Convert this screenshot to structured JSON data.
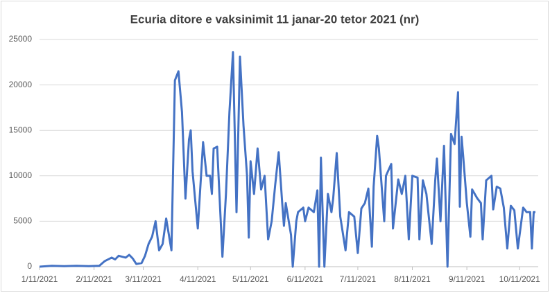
{
  "chart_data": {
    "type": "line",
    "title": "Ecuria ditore e vaksinimit 11 janar-20 tetor 2021 (nr)",
    "x": [
      "1/11/2021",
      "1/18/2021",
      "1/25/2021",
      "2/1/2021",
      "2/8/2021",
      "2/14/2021",
      "2/17/2021",
      "2/21/2021",
      "2/23/2021",
      "2/25/2021",
      "3/1/2021",
      "3/3/2021",
      "3/5/2021",
      "3/7/2021",
      "3/10/2021",
      "3/12/2021",
      "3/14/2021",
      "3/16/2021",
      "3/18/2021",
      "3/20/2021",
      "3/22/2021",
      "3/24/2021",
      "3/27/2021",
      "3/29/2021",
      "3/31/2021",
      "4/2/2021",
      "4/4/2021",
      "4/6/2021",
      "4/7/2021",
      "4/8/2021",
      "4/11/2021",
      "4/14/2021",
      "4/16/2021",
      "4/18/2021",
      "4/19/2021",
      "4/20/2021",
      "4/22/2021",
      "4/25/2021",
      "4/27/2021",
      "4/29/2021",
      "5/1/2021",
      "5/3/2021",
      "5/5/2021",
      "5/7/2021",
      "5/9/2021",
      "5/10/2021",
      "5/11/2021",
      "5/13/2021",
      "5/15/2021",
      "5/17/2021",
      "5/19/2021",
      "5/21/2021",
      "5/23/2021",
      "5/25/2021",
      "5/27/2021",
      "5/29/2021",
      "5/30/2021",
      "5/31/2021",
      "6/3/2021",
      "6/4/2021",
      "6/6/2021",
      "6/7/2021",
      "6/10/2021",
      "6/11/2021",
      "6/13/2021",
      "6/16/2021",
      "6/18/2021",
      "6/19/2021",
      "6/20/2021",
      "6/22/2021",
      "6/24/2021",
      "6/26/2021",
      "6/27/2021",
      "6/29/2021",
      "7/1/2021",
      "7/4/2021",
      "7/6/2021",
      "7/9/2021",
      "7/11/2021",
      "7/13/2021",
      "7/15/2021",
      "7/17/2021",
      "7/19/2021",
      "7/20/2021",
      "7/22/2021",
      "7/23/2021",
      "7/26/2021",
      "7/27/2021",
      "7/30/2021",
      "7/31/2021",
      "8/3/2021",
      "8/5/2021",
      "8/7/2021",
      "8/9/2021",
      "8/11/2021",
      "8/14/2021",
      "8/15/2021",
      "8/17/2021",
      "8/19/2021",
      "8/22/2021",
      "8/24/2021",
      "8/25/2021",
      "8/27/2021",
      "8/29/2021",
      "8/31/2021",
      "9/2/2021",
      "9/4/2021",
      "9/6/2021",
      "9/7/2021",
      "9/8/2021",
      "9/9/2021",
      "9/11/2021",
      "9/13/2021",
      "9/14/2021",
      "9/17/2021",
      "9/19/2021",
      "9/20/2021",
      "9/22/2021",
      "9/25/2021",
      "9/26/2021",
      "9/28/2021",
      "9/30/2021",
      "10/2/2021",
      "10/4/2021",
      "10/6/2021",
      "10/8/2021",
      "10/10/2021",
      "10/13/2021",
      "10/15/2021",
      "10/17/2021",
      "10/18/2021",
      "10/19/2021",
      "10/20/2021"
    ],
    "series": [
      {
        "color": "#4472c4",
        "values": [
          0,
          100,
          50,
          100,
          50,
          100,
          600,
          1000,
          800,
          1200,
          1000,
          1300,
          900,
          300,
          400,
          1200,
          2500,
          3300,
          5000,
          1800,
          2500,
          5300,
          1800,
          20500,
          21500,
          17000,
          7500,
          14000,
          15000,
          10500,
          4200,
          13700,
          10000,
          10000,
          8000,
          13000,
          13200,
          1100,
          8000,
          17000,
          23600,
          6000,
          23100,
          15500,
          10000,
          3200,
          11600,
          8000,
          13000,
          8500,
          10000,
          3000,
          5000,
          9000,
          12600,
          7000,
          4500,
          7000,
          3500,
          0,
          5000,
          6000,
          6500,
          5000,
          6500,
          6000,
          8400,
          0,
          12000,
          0,
          8000,
          6000,
          7500,
          12500,
          5500,
          1800,
          6000,
          5500,
          1500,
          6400,
          7000,
          8600,
          2200,
          8800,
          14400,
          13000,
          5000,
          10000,
          11300,
          4200,
          9600,
          8000,
          10000,
          3000,
          10000,
          9800,
          3000,
          9500,
          8000,
          2500,
          9500,
          11900,
          5000,
          13300,
          0,
          14600,
          13500,
          19200,
          6600,
          14300,
          12000,
          7000,
          3300,
          8500,
          7500,
          7000,
          3000,
          9500,
          10000,
          6300,
          8800,
          8600,
          6500,
          2000,
          6700,
          6200,
          2000,
          6500,
          6000,
          6000,
          2000,
          6000,
          6000
        ]
      }
    ],
    "xlim": [
      "1/11/2021",
      "10/20/2021"
    ],
    "xticks": [
      "1/11/2021",
      "2/11/2021",
      "3/11/2021",
      "4/11/2021",
      "5/11/2021",
      "6/11/2021",
      "7/11/2021",
      "8/11/2021",
      "9/11/2021",
      "10/11/2021"
    ],
    "ylim": [
      0,
      25000
    ],
    "yticks": [
      0,
      5000,
      10000,
      15000,
      20000,
      25000
    ],
    "grid": true
  }
}
